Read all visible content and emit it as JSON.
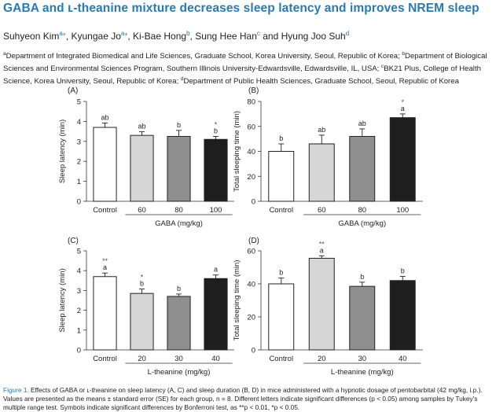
{
  "title": "GABA and ʟ-theanine mixture decreases sleep latency and improves NREM sleep",
  "authors": [
    {
      "name": "Suhyeon Kim",
      "sup": "a⁎",
      "sep": ", "
    },
    {
      "name": "Kyungae Jo",
      "sup": "a⁎",
      "sep": ", "
    },
    {
      "name": "Ki-Bae Hong",
      "sup": "b",
      "sep": ", "
    },
    {
      "name": "Sung Hee Han",
      "sup": "c",
      "sep": " and "
    },
    {
      "name": "Hyung Joo Suh",
      "sup": "d",
      "sep": ""
    }
  ],
  "affiliations": [
    {
      "sup": "a",
      "text": "Department of Integrated Biomedical and Life Sciences, Graduate School, Korea University, Seoul, Republic of Korea; "
    },
    {
      "sup": "b",
      "text": "Department of Biological Sciences and Environmental Sciences Program, Southern Illinois University-Edwardsville, Edwardsville, IL, USA; "
    },
    {
      "sup": "c",
      "text": "BK21 Plus, College of Health Science, Korea University, Seoul, Republic of Korea; "
    },
    {
      "sup": "d",
      "text": "Department of Public Health Sciences, Graduate School, Seoul, Republic of Korea"
    }
  ],
  "caption": {
    "label": "Figure 1.",
    "text": " Effects of GABA or ʟ-theanine on sleep latency (A, C) and sleep duration (B, D) in mice administered with a hypnotic dosage of pentobarbital (42 mg/kg, i.p.). Values are presented as the means ± standard error (SE) for each group, n = 8. Different letters indicate significant differences (p < 0.05) among samples by Tukey's multiple range test. Symbols indicate significant differences by Bonferroni test, as **p < 0.01, *p < 0.05."
  },
  "colors": {
    "title": "#2a7ab0",
    "control": "#ffffff",
    "low": "#d6d6d6",
    "mid": "#8f8f8f",
    "high": "#1e1e1e"
  },
  "chart_data": [
    {
      "panel": "(A)",
      "type": "bar",
      "categories": [
        "Control",
        "60",
        "80",
        "100"
      ],
      "values": [
        3.7,
        3.3,
        3.25,
        3.1
      ],
      "errors": [
        0.22,
        0.18,
        0.3,
        0.15
      ],
      "letters": [
        "ab",
        "ab",
        "b",
        "b"
      ],
      "stars": [
        "",
        "",
        "",
        "*"
      ],
      "ylabel": "Sleep latency (min)",
      "xlabel": "GABA (mg/kg)",
      "ylim": [
        0,
        5
      ],
      "yticks": [
        0,
        1,
        2,
        3,
        4,
        5
      ]
    },
    {
      "panel": "(B)",
      "type": "bar",
      "categories": [
        "Control",
        "60",
        "80",
        "100"
      ],
      "values": [
        40,
        46,
        52,
        67
      ],
      "errors": [
        6,
        7,
        6,
        3
      ],
      "letters": [
        "b",
        "ab",
        "ab",
        "a"
      ],
      "stars": [
        "",
        "",
        "",
        "*"
      ],
      "ylabel": "Total sleeping time (min)",
      "xlabel": "GABA (mg/kg)",
      "ylim": [
        0,
        80
      ],
      "yticks": [
        0,
        20,
        40,
        60,
        80
      ]
    },
    {
      "panel": "(C)",
      "type": "bar",
      "categories": [
        "Control",
        "20",
        "30",
        "40"
      ],
      "values": [
        3.7,
        2.85,
        2.7,
        3.6
      ],
      "errors": [
        0.18,
        0.22,
        0.12,
        0.18
      ],
      "letters": [
        "a",
        "b",
        "b",
        "a"
      ],
      "stars": [
        "**",
        "*",
        "",
        ""
      ],
      "ylabel": "Sleep latency (min)",
      "xlabel": "L-theanine (mg/kg)",
      "ylim": [
        0,
        5
      ],
      "yticks": [
        0,
        1,
        2,
        3,
        4,
        5
      ]
    },
    {
      "panel": "(D)",
      "type": "bar",
      "categories": [
        "Control",
        "20",
        "30",
        "40"
      ],
      "values": [
        40,
        55.5,
        38.5,
        42
      ],
      "errors": [
        3.5,
        1.5,
        2.5,
        2.5
      ],
      "letters": [
        "b",
        "a",
        "b",
        "b"
      ],
      "stars": [
        "",
        "**",
        "",
        ""
      ],
      "ylabel": "Total sleeping time (min)",
      "xlabel": "L-theanine (mg/kg)",
      "ylim": [
        0,
        60
      ],
      "yticks": [
        0,
        20,
        40,
        60
      ]
    }
  ]
}
